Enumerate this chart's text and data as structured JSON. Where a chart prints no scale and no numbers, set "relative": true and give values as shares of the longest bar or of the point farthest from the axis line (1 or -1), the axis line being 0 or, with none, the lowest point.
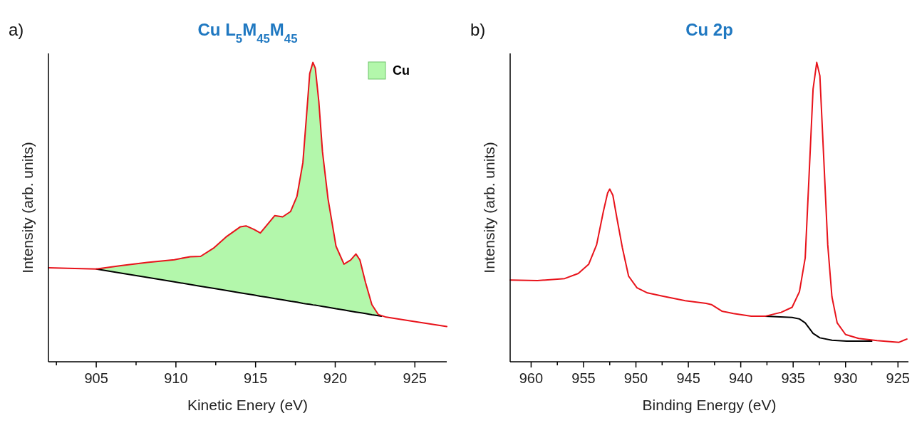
{
  "chart_data": [
    {
      "type": "line",
      "title": "Cu L$_{5}$M$_{45}$M$_{45}$",
      "xlabel": "Kinetic Enery (eV)",
      "ylabel": "Intensity (arb. units)",
      "annotations": [
        "a)"
      ],
      "relative": true,
      "legend": "top right",
      "grid": false,
      "xlim": [
        902,
        927
      ],
      "xticks": [
        {
          "value": 902.5,
          "label": null
        },
        905,
        {
          "value": 907.5,
          "label": null
        },
        910,
        {
          "value": 912.5,
          "label": null
        },
        915,
        {
          "value": 917.5,
          "label": null
        },
        920,
        {
          "value": 922.5,
          "label": null
        },
        925
      ],
      "series": [
        {
          "name": "Cu",
          "type": "area",
          "color": "#b3f7ab",
          "x": [
            905,
            906.55,
            908.2,
            909.9,
            910.9,
            911.55,
            912.4,
            913.2,
            914.05,
            914.4,
            914.9,
            915.3,
            915.7,
            916.2,
            916.7,
            917.2,
            917.6,
            917.97,
            918.2,
            918.4,
            918.6,
            918.75,
            918.97,
            919.2,
            919.55,
            920.05,
            920.55,
            920.97,
            921.3,
            921.55,
            921.9,
            922.3,
            922.7,
            922.9
          ],
          "values": [
            0.31,
            0.321,
            0.332,
            0.341,
            0.351,
            0.352,
            0.381,
            0.419,
            0.451,
            0.454,
            0.442,
            0.43,
            0.456,
            0.488,
            0.484,
            0.502,
            0.553,
            0.665,
            0.823,
            0.963,
            1.0,
            0.981,
            0.87,
            0.702,
            0.544,
            0.386,
            0.326,
            0.34,
            0.36,
            0.34,
            0.265,
            0.191,
            0.158,
            0.152
          ]
        },
        {
          "color": "#000000",
          "x": [
            905,
            906.55,
            908.2,
            909.9,
            910.9,
            911.55,
            912.4,
            913.2,
            914.05,
            914.4,
            914.9,
            915.3,
            915.7,
            916.2,
            916.7,
            917.2,
            917.6,
            917.97,
            918.2,
            918.4,
            918.6,
            918.75,
            918.97,
            919.2,
            919.55,
            920.05,
            920.55,
            920.97,
            921.3,
            921.55,
            921.9,
            922.3,
            922.7,
            922.9
          ],
          "values": [
            0.31,
            0.296,
            0.282,
            0.267,
            0.258,
            0.252,
            0.245,
            0.238,
            0.23,
            0.227,
            0.223,
            0.219,
            0.216,
            0.211,
            0.207,
            0.202,
            0.199,
            0.195,
            0.193,
            0.192,
            0.19,
            0.189,
            0.187,
            0.185,
            0.182,
            0.177,
            0.173,
            0.169,
            0.166,
            0.164,
            0.161,
            0.157,
            0.154,
            0.152
          ]
        },
        {
          "color": "#e8131b",
          "x": [
            902,
            903.2,
            905,
            906.55,
            908.2,
            909.9,
            910.9,
            911.55,
            912.4,
            913.2,
            914.05,
            914.4,
            914.9,
            915.3,
            915.7,
            916.2,
            916.7,
            917.2,
            917.6,
            917.97,
            918.2,
            918.4,
            918.6,
            918.75,
            918.97,
            919.2,
            919.55,
            920.05,
            920.55,
            920.97,
            921.3,
            921.55,
            921.9,
            922.3,
            922.7,
            923.2,
            924.9,
            927
          ],
          "values": [
            0.314,
            0.312,
            0.31,
            0.321,
            0.332,
            0.341,
            0.351,
            0.352,
            0.381,
            0.419,
            0.451,
            0.454,
            0.442,
            0.43,
            0.456,
            0.488,
            0.484,
            0.502,
            0.553,
            0.665,
            0.823,
            0.963,
            1.0,
            0.981,
            0.87,
            0.702,
            0.544,
            0.386,
            0.326,
            0.34,
            0.36,
            0.34,
            0.265,
            0.191,
            0.158,
            0.149,
            0.135,
            0.118
          ]
        }
      ]
    },
    {
      "type": "line",
      "title": "Cu 2p",
      "xlabel": "Binding Energy (eV)",
      "ylabel": "Intensity (arb. units)",
      "annotations": [
        "b)"
      ],
      "relative": true,
      "grid": false,
      "xlim": [
        962,
        924
      ],
      "xticks": [
        960,
        {
          "value": 957.5,
          "label": null
        },
        955,
        {
          "value": 952.5,
          "label": null
        },
        950,
        {
          "value": 947.5,
          "label": null
        },
        945,
        {
          "value": 942.5,
          "label": null
        },
        940,
        {
          "value": 937.5,
          "label": null
        },
        935,
        {
          "value": 932.5,
          "label": null
        },
        930,
        {
          "value": 927.5,
          "label": null
        },
        925
      ],
      "series": [
        {
          "color": "#000000",
          "x": [
            937.7,
            935.1,
            934.4,
            933.85,
            933.1,
            932.45,
            931.3,
            929.9,
            927.5
          ],
          "values": [
            0.152,
            0.148,
            0.143,
            0.13,
            0.095,
            0.08,
            0.072,
            0.069,
            0.069
          ]
        },
        {
          "color": "#e8131b",
          "x": [
            962,
            959.4,
            956.8,
            955.5,
            954.5,
            953.75,
            953.1,
            952.7,
            952.5,
            952.2,
            951.8,
            951.3,
            950.7,
            949.9,
            948.9,
            947.4,
            945.3,
            943.3,
            942.8,
            941.8,
            940.7,
            939.0,
            937.7,
            936.15,
            935.1,
            934.4,
            933.85,
            933.5,
            933.1,
            932.75,
            932.45,
            932.1,
            931.7,
            931.3,
            930.8,
            930.0,
            928.75,
            927.0,
            924.9,
            924.15
          ],
          "values": [
            0.273,
            0.271,
            0.278,
            0.295,
            0.326,
            0.391,
            0.503,
            0.564,
            0.577,
            0.556,
            0.477,
            0.382,
            0.286,
            0.247,
            0.23,
            0.219,
            0.204,
            0.195,
            0.191,
            0.169,
            0.161,
            0.152,
            0.152,
            0.165,
            0.182,
            0.234,
            0.347,
            0.608,
            0.911,
            1.0,
            0.955,
            0.694,
            0.391,
            0.217,
            0.13,
            0.091,
            0.078,
            0.071,
            0.065,
            0.076
          ]
        }
      ]
    }
  ]
}
